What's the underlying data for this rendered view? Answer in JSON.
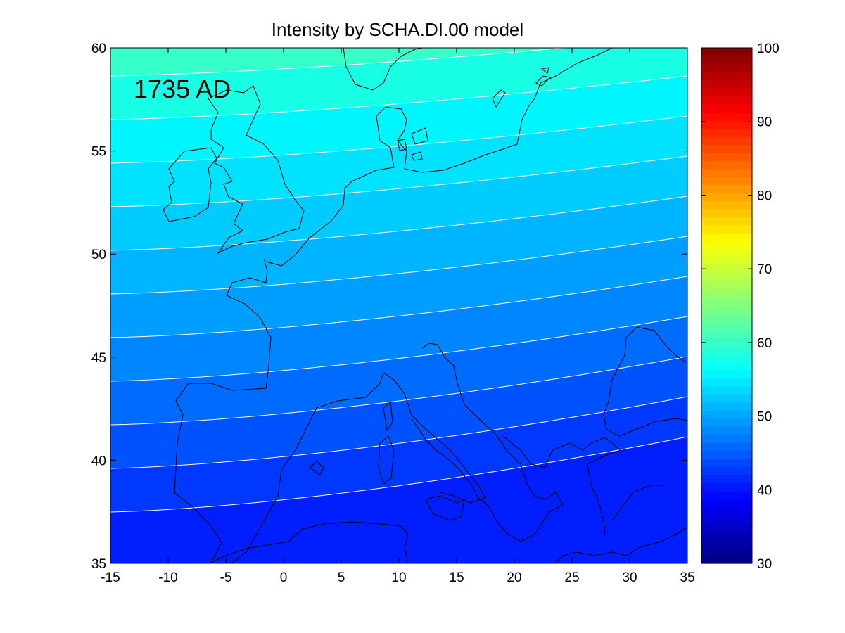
{
  "chart_data": {
    "type": "heatmap",
    "title": "Intensity by SCHA.DI.00 model",
    "annotation": "1735 AD",
    "x_ticks": [
      "-15",
      "-10",
      "-5",
      "0",
      "5",
      "10",
      "15",
      "20",
      "25",
      "30",
      "35"
    ],
    "y_ticks": [
      "60",
      "55",
      "50",
      "45",
      "40",
      "35"
    ],
    "xlim": [
      -15,
      35
    ],
    "ylim": [
      35,
      60
    ],
    "colorbar": {
      "range": [
        30,
        100
      ],
      "ticks": [
        "100",
        "90",
        "80",
        "70",
        "60",
        "50",
        "40",
        "30"
      ],
      "colormap": "jet"
    },
    "contour_color": "#ffffff",
    "coastline_color": "#000000",
    "grid": false,
    "contour_bands": [
      {
        "level": 58,
        "color": "#36ffc9"
      },
      {
        "level": 56,
        "color": "#19ffe6"
      },
      {
        "level": 54,
        "color": "#00f6ff"
      },
      {
        "level": 52,
        "color": "#00e2ff"
      },
      {
        "level": 50,
        "color": "#00ccff"
      },
      {
        "level": 48,
        "color": "#00b4ff"
      },
      {
        "level": 46,
        "color": "#009eff"
      },
      {
        "level": 44,
        "color": "#0086ff"
      },
      {
        "level": 42,
        "color": "#006cff"
      },
      {
        "level": 40,
        "color": "#0052ff"
      },
      {
        "level": 38,
        "color": "#0038ff"
      },
      {
        "level": 36,
        "color": "#001eff"
      }
    ]
  }
}
